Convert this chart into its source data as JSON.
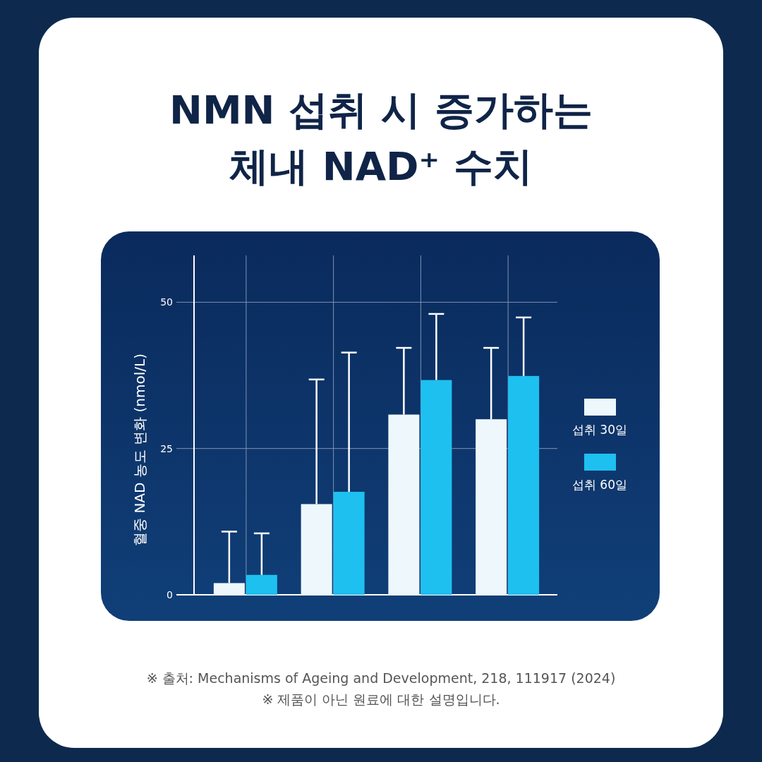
{
  "chart_data": {
    "type": "bar",
    "title": "NMN 섭취 시 증가하는\n체내 NAD⁺ 수치",
    "ylabel": "혈중 NAD 농도 변화 (nmol/L)",
    "categories": [
      null,
      null,
      null,
      null
    ],
    "series": [
      {
        "name": "섭취 30일",
        "color": "#eef8fc",
        "values": [
          2.0,
          15.5,
          30.8,
          30.0
        ],
        "errors": [
          [
            2.0,
            10.8
          ],
          [
            15.5,
            36.8
          ],
          [
            30.8,
            42.2
          ],
          [
            30.0,
            42.2
          ]
        ]
      },
      {
        "name": "섭취 60일",
        "color": "#1ec0f0",
        "values": [
          3.4,
          17.6,
          36.7,
          37.4
        ],
        "errors": [
          [
            3.4,
            10.5
          ],
          [
            17.6,
            41.4
          ],
          [
            36.7,
            48.0
          ],
          [
            37.4,
            47.4
          ]
        ]
      }
    ],
    "ylim": [
      0,
      58
    ],
    "yticks": [
      0,
      25,
      50
    ],
    "grid": true,
    "legend": "right",
    "annotations": [
      "※ 출처: Mechanisms of Ageing and Development, 218, 111917 (2024)",
      "※ 제품이 아닌 원료에 대한 설명입니다."
    ]
  }
}
